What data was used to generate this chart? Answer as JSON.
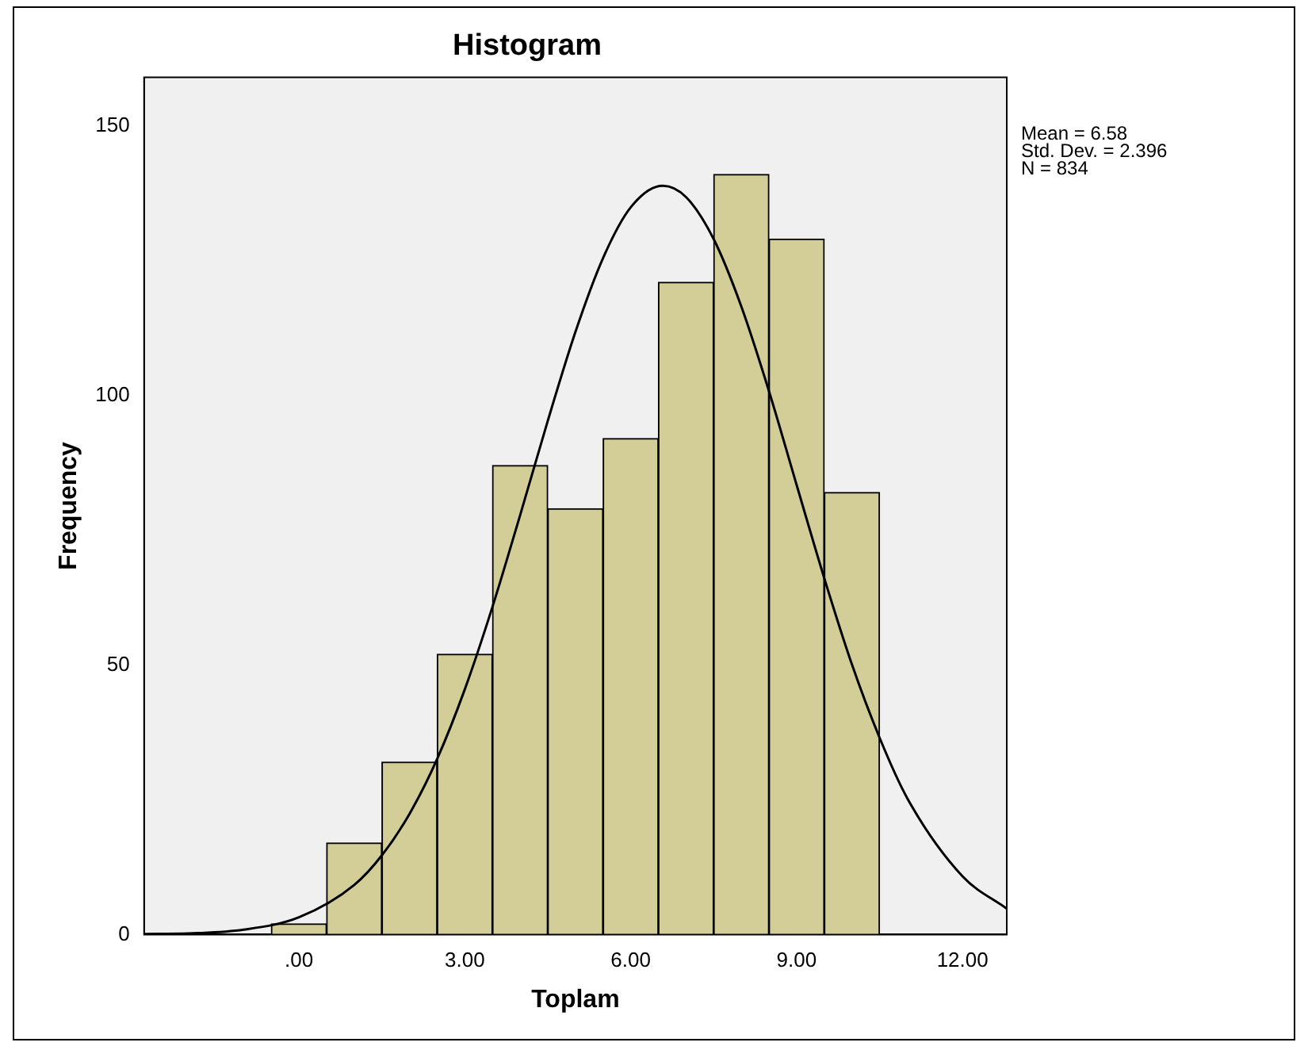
{
  "chart_data": {
    "type": "histogram",
    "title": "Histogram",
    "xlabel": "Toplam",
    "ylabel": "Frequency",
    "bins": [
      -0.5,
      0.5,
      1.5,
      2.5,
      3.5,
      4.5,
      5.5,
      6.5,
      7.5,
      8.5,
      9.5,
      10.5
    ],
    "values": [
      2,
      17,
      32,
      52,
      87,
      79,
      92,
      121,
      141,
      129,
      82
    ],
    "color": "#d3ce97",
    "series": [
      {
        "type": "line",
        "color": "#000000",
        "x": [
          -2.8,
          -2,
          -1,
          0,
          1,
          1.5,
          2,
          2.5,
          3,
          3.5,
          4,
          4.5,
          5,
          5.5,
          6,
          6.58,
          7,
          7.5,
          8,
          8.5,
          9,
          9.5,
          10,
          10.5,
          11,
          12,
          12.8
        ],
        "values": [
          0.1,
          0.2,
          0.9,
          3.2,
          9.2,
          14.7,
          22.4,
          32.6,
          45.5,
          60.8,
          77.8,
          95.3,
          111.8,
          125.5,
          134.9,
          138.9,
          136.8,
          129.0,
          116.5,
          100.8,
          83.4,
          66.1,
          50.1,
          36.5,
          25.3,
          10.8,
          4.8
        ]
      }
    ],
    "xlim": [
      -2.8,
      12.8
    ],
    "ylim": [
      0,
      159
    ],
    "xticks": [
      {
        "value": 0,
        "label": ".00"
      },
      {
        "value": 3,
        "label": "3.00"
      },
      {
        "value": 6,
        "label": "6.00"
      },
      {
        "value": 9,
        "label": "9.00"
      },
      {
        "value": 12,
        "label": "12.00"
      }
    ],
    "yticks": [
      0,
      50,
      100,
      150
    ],
    "annotations": [
      "Mean = 6.58",
      "Std. Dev. = 2.396",
      "N = 834"
    ]
  }
}
